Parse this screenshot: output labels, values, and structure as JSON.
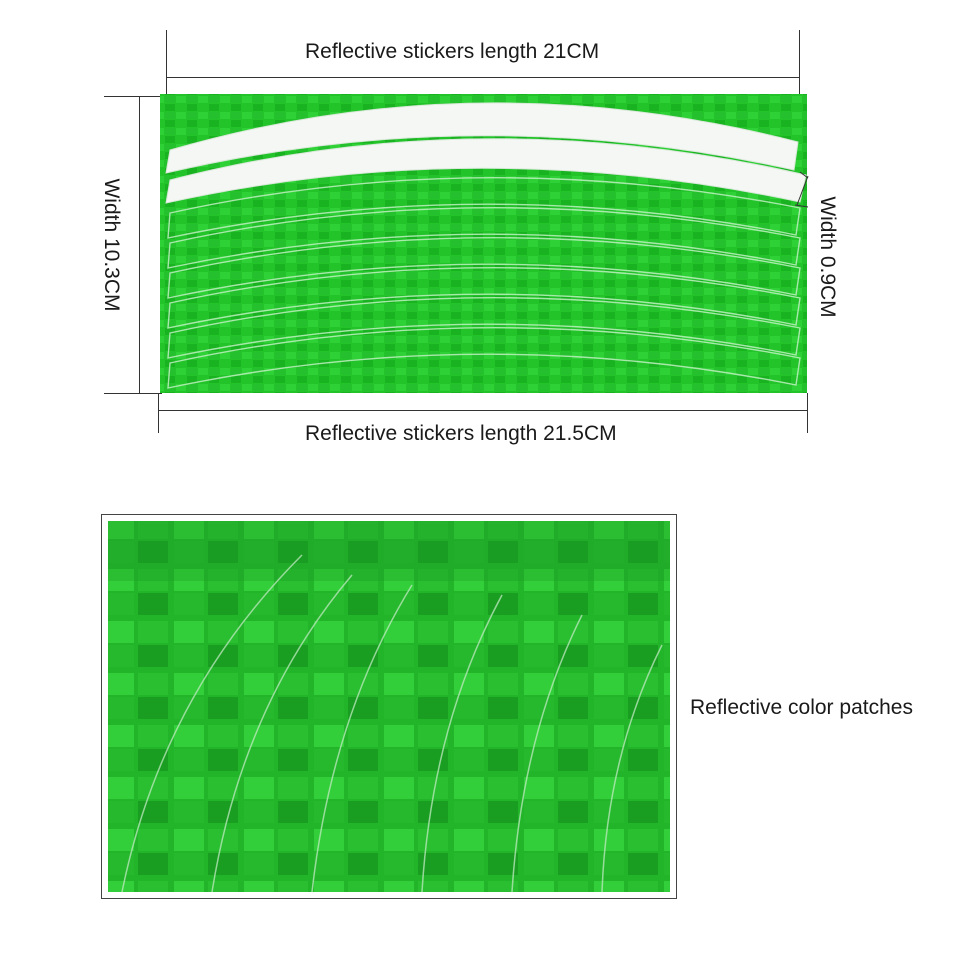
{
  "dimensions": {
    "length_top": "Reflective stickers length 21CM",
    "length_bottom": "Reflective stickers length 21.5CM",
    "width_sheet": "Width 10.3CM",
    "width_strip": "Width 0.9CM"
  },
  "closeup": {
    "label": "Reflective color patches"
  },
  "colors": {
    "sticker_green": "#22c42a",
    "sticker_dark_green": "#159a1d",
    "sticker_light_green": "#4be052",
    "strip_white": "#f4f7f4"
  }
}
